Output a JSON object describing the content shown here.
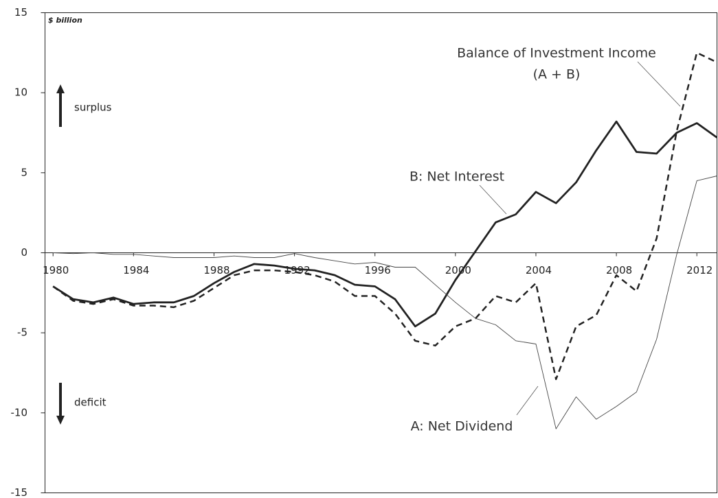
{
  "chart_data": {
    "type": "line",
    "y_unit_label": "$ billion",
    "annotations": [
      "surplus",
      "deficit",
      "(A + B)"
    ],
    "x": [
      1980,
      1981,
      1982,
      1983,
      1984,
      1985,
      1986,
      1987,
      1988,
      1989,
      1990,
      1991,
      1992,
      1993,
      1994,
      1995,
      1996,
      1997,
      1998,
      1999,
      2000,
      2001,
      2002,
      2003,
      2004,
      2005,
      2006,
      2007,
      2008,
      2009,
      2010,
      2011,
      2012,
      2013
    ],
    "xlim": [
      1979.6,
      2013
    ],
    "xticks": [
      1980,
      1984,
      1988,
      1992,
      1996,
      2000,
      2004,
      2008,
      2012
    ],
    "ylim": [
      -15,
      15
    ],
    "yticks": [
      -15,
      -10,
      -5,
      0,
      5,
      10,
      15
    ],
    "series": [
      {
        "name": "Balance of Investment Income",
        "color": "#222222",
        "style": "dashed",
        "values": [
          -2.1,
          -3.0,
          -3.2,
          -2.9,
          -3.3,
          -3.3,
          -3.4,
          -3.0,
          -2.2,
          -1.4,
          -1.1,
          -1.1,
          -1.2,
          -1.4,
          -1.8,
          -2.7,
          -2.7,
          -3.8,
          -5.5,
          -5.8,
          -4.6,
          -4.1,
          -2.7,
          -3.1,
          -1.9,
          -7.9,
          -4.6,
          -3.9,
          -1.4,
          -2.4,
          0.9,
          7.6,
          12.5,
          11.9
        ]
      },
      {
        "name": "B: Net Interest",
        "color": "#222222",
        "style": "thick",
        "values": [
          -2.1,
          -2.9,
          -3.1,
          -2.8,
          -3.2,
          -3.1,
          -3.1,
          -2.7,
          -1.9,
          -1.2,
          -0.7,
          -0.8,
          -1.0,
          -1.1,
          -1.4,
          -2.0,
          -2.1,
          -2.9,
          -4.6,
          -3.8,
          -1.7,
          0.1,
          1.9,
          2.4,
          3.8,
          3.1,
          4.4,
          6.4,
          8.2,
          6.3,
          6.2,
          7.5,
          8.1,
          7.2
        ]
      },
      {
        "name": "A: Net Dividend",
        "color": "#444444",
        "style": "thin",
        "values": [
          0,
          -0.05,
          0,
          -0.1,
          -0.1,
          -0.2,
          -0.3,
          -0.3,
          -0.3,
          -0.2,
          -0.3,
          -0.3,
          -0.05,
          -0.3,
          -0.5,
          -0.7,
          -0.6,
          -0.9,
          -0.9,
          -2.0,
          -3.1,
          -4.1,
          -4.5,
          -5.5,
          -5.7,
          -11.0,
          -9.0,
          -10.4,
          -9.6,
          -8.7,
          -5.4,
          -0.1,
          4.5,
          4.8
        ]
      }
    ]
  }
}
